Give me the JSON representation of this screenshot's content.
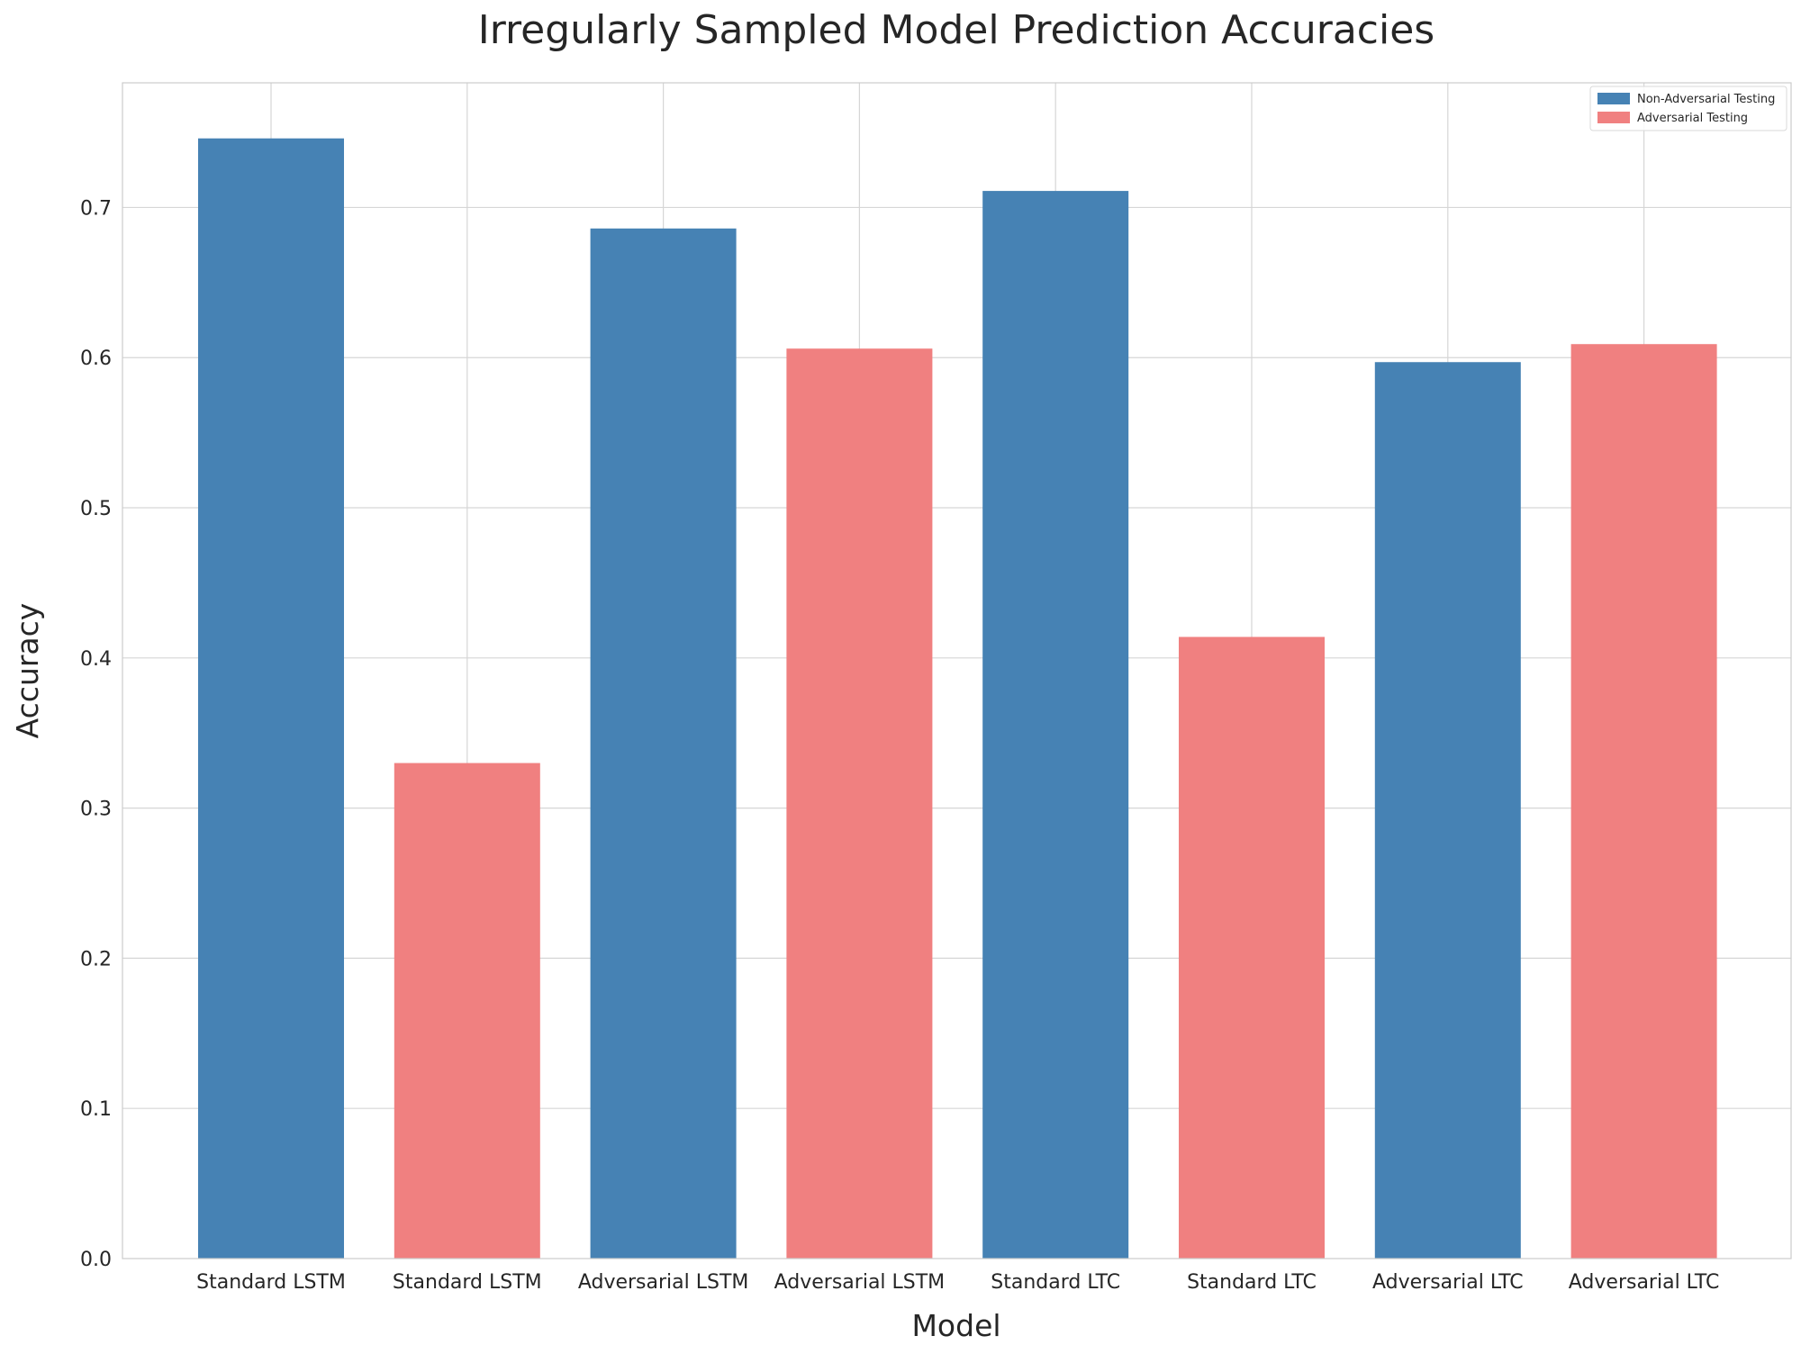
{
  "chart_data": {
    "type": "bar",
    "title": "Irregularly Sampled Model Prediction Accuracies",
    "xlabel": "Model",
    "ylabel": "Accuracy",
    "categories": [
      "Standard LSTM",
      "Standard LSTM",
      "Adversarial LSTM",
      "Adversarial LSTM",
      "Standard LTC",
      "Standard LTC",
      "Adversarial LTC",
      "Adversarial LTC"
    ],
    "values": [
      0.746,
      0.33,
      0.686,
      0.606,
      0.711,
      0.414,
      0.597,
      0.609
    ],
    "bar_series": [
      0,
      1,
      0,
      1,
      0,
      1,
      0,
      1
    ],
    "series": [
      {
        "name": "Non-Adversarial Testing",
        "color": "#4682b4"
      },
      {
        "name": "Adversarial Testing",
        "color": "#f08080"
      }
    ],
    "yticks": [
      "0.0",
      "0.1",
      "0.2",
      "0.3",
      "0.4",
      "0.5",
      "0.6",
      "0.7"
    ],
    "ylim": [
      0,
      0.783
    ],
    "grid": true,
    "legend_position": "top-right"
  }
}
